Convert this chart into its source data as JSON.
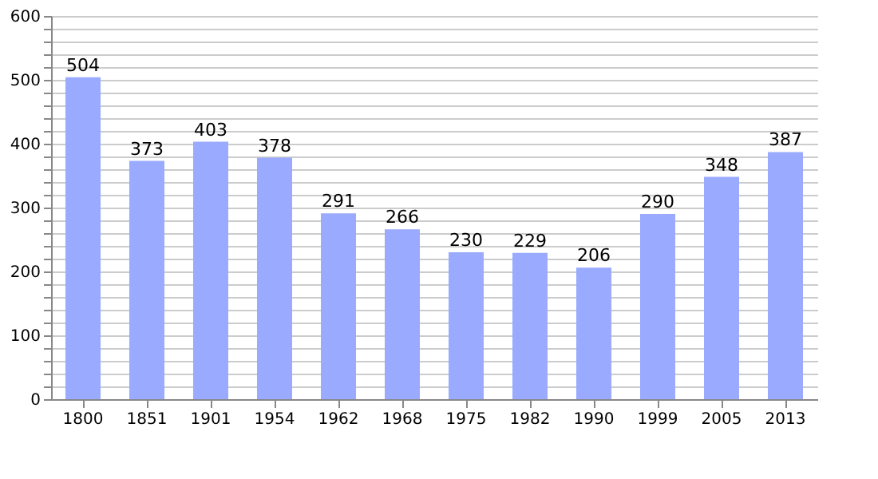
{
  "chart_data": {
    "type": "bar",
    "categories": [
      "1800",
      "1851",
      "1901",
      "1954",
      "1962",
      "1968",
      "1975",
      "1982",
      "1990",
      "1999",
      "2005",
      "2013"
    ],
    "values": [
      504,
      373,
      403,
      378,
      291,
      266,
      230,
      229,
      206,
      290,
      348,
      387
    ],
    "color": "#99aaff",
    "data_labels": true,
    "grid": "y",
    "ylim": [
      0,
      600
    ],
    "yticks": [
      0,
      {
        "value": 20,
        "label": null
      },
      {
        "value": 40,
        "label": null
      },
      {
        "value": 60,
        "label": null
      },
      {
        "value": 80,
        "label": null
      },
      100,
      {
        "value": 120,
        "label": null
      },
      {
        "value": 140,
        "label": null
      },
      {
        "value": 160,
        "label": null
      },
      {
        "value": 180,
        "label": null
      },
      200,
      {
        "value": 220,
        "label": null
      },
      {
        "value": 240,
        "label": null
      },
      {
        "value": 260,
        "label": null
      },
      {
        "value": 280,
        "label": null
      },
      300,
      {
        "value": 320,
        "label": null
      },
      {
        "value": 340,
        "label": null
      },
      {
        "value": 360,
        "label": null
      },
      {
        "value": 380,
        "label": null
      },
      400,
      {
        "value": 420,
        "label": null
      },
      {
        "value": 440,
        "label": null
      },
      {
        "value": 460,
        "label": null
      },
      {
        "value": 480,
        "label": null
      },
      500,
      {
        "value": 520,
        "label": null
      },
      {
        "value": 540,
        "label": null
      },
      {
        "value": 560,
        "label": null
      },
      {
        "value": 580,
        "label": null
      },
      600
    ]
  }
}
